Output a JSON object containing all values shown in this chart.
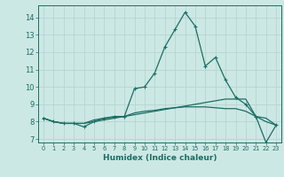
{
  "title": "",
  "xlabel": "Humidex (Indice chaleur)",
  "background_color": "#cce8e4",
  "grid_color": "#b8d4d0",
  "line_color": "#1a6e64",
  "spine_color": "#1a6e64",
  "tick_color": "#1a6e64",
  "label_color": "#1a6e64",
  "xlim": [
    -0.5,
    23.5
  ],
  "ylim": [
    6.8,
    14.7
  ],
  "yticks": [
    7,
    8,
    9,
    10,
    11,
    12,
    13,
    14
  ],
  "xticks": [
    0,
    1,
    2,
    3,
    4,
    5,
    6,
    7,
    8,
    9,
    10,
    11,
    12,
    13,
    14,
    15,
    16,
    17,
    18,
    19,
    20,
    21,
    22,
    23
  ],
  "series1": [
    8.2,
    8.0,
    7.9,
    7.9,
    7.7,
    8.0,
    8.2,
    8.3,
    8.3,
    9.9,
    10.0,
    10.8,
    12.3,
    13.3,
    14.3,
    13.5,
    11.2,
    11.7,
    10.4,
    9.4,
    9.0,
    8.3,
    6.8,
    7.8
  ],
  "series2": [
    8.2,
    8.0,
    7.9,
    7.9,
    7.9,
    8.1,
    8.2,
    8.25,
    8.3,
    8.4,
    8.5,
    8.6,
    8.7,
    8.8,
    8.9,
    9.0,
    9.1,
    9.2,
    9.3,
    9.3,
    9.3,
    8.3,
    8.2,
    7.8
  ],
  "series3": [
    8.2,
    8.0,
    7.9,
    7.9,
    7.9,
    8.0,
    8.1,
    8.2,
    8.3,
    8.5,
    8.6,
    8.65,
    8.75,
    8.8,
    8.85,
    8.85,
    8.85,
    8.8,
    8.75,
    8.75,
    8.6,
    8.3,
    8.0,
    7.8
  ]
}
